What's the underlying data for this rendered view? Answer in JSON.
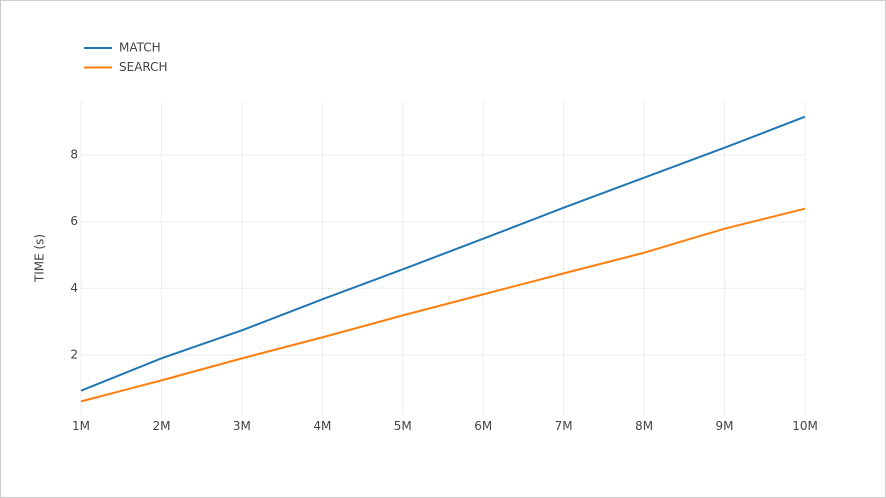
{
  "chart_data": {
    "type": "line",
    "y_label": "TIME (s)",
    "x": [
      1000000,
      2000000,
      3000000,
      4000000,
      5000000,
      6000000,
      7000000,
      8000000,
      9000000,
      10000000
    ],
    "series": [
      {
        "name": "MATCH",
        "color": "#1f77b4",
        "values": [
          0.93,
          1.9,
          2.74,
          3.67,
          4.57,
          5.49,
          6.42,
          7.32,
          8.22,
          9.15
        ]
      },
      {
        "name": "SEARCH",
        "color": "#ff7f0e",
        "values": [
          0.61,
          1.24,
          1.9,
          2.53,
          3.19,
          3.82,
          4.45,
          5.07,
          5.79,
          6.39
        ]
      }
    ],
    "xlim": [
      1000000,
      10000000
    ],
    "xticks": [
      {
        "value": 1000000,
        "label": "1M"
      },
      {
        "value": 2000000,
        "label": "2M"
      },
      {
        "value": 3000000,
        "label": "3M"
      },
      {
        "value": 4000000,
        "label": "4M"
      },
      {
        "value": 5000000,
        "label": "5M"
      },
      {
        "value": 6000000,
        "label": "6M"
      },
      {
        "value": 7000000,
        "label": "7M"
      },
      {
        "value": 8000000,
        "label": "8M"
      },
      {
        "value": 9000000,
        "label": "9M"
      },
      {
        "value": 10000000,
        "label": "10M"
      }
    ],
    "ylim": [
      0.18,
      9.6
    ],
    "yticks": [
      2,
      4,
      6,
      8
    ],
    "grid": true,
    "legend": "top-left"
  }
}
